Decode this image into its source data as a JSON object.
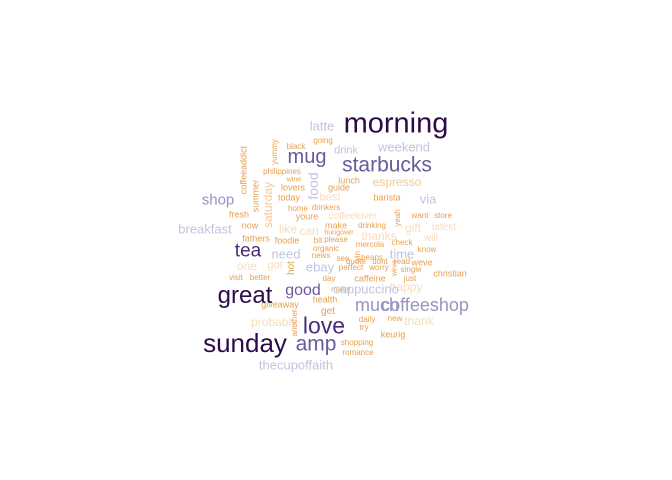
{
  "colors": {
    "darkest": "#2d0a4a",
    "dark": "#4a2a7a",
    "purple": "#6b5a9e",
    "lavender": "#9a92c4",
    "pale_lavender": "#c5c2df",
    "peach": "#f3c89a",
    "orange": "#e8a04e",
    "pale_peach": "#f7dcbc"
  },
  "words": [
    "morning",
    "starbucks",
    "mug",
    "latte",
    "weekend",
    "drink",
    "going",
    "black",
    "espresso",
    "food",
    "coffeeaddict",
    "yummy",
    "philippines",
    "wine",
    "lovers",
    "guide",
    "lunch",
    "shop",
    "via",
    "summer",
    "saturday",
    "today",
    "best",
    "barista",
    "home",
    "drinkers",
    "fresh",
    "youre",
    "coffeelover",
    "want",
    "store",
    "breakfast",
    "now",
    "like",
    "can",
    "make",
    "drinking",
    "yeah",
    "gift",
    "latest",
    "fathers",
    "foodie",
    "hungover",
    "thanks",
    "will",
    "tea",
    "need",
    "bit",
    "please",
    "mercola",
    "check",
    "time",
    "one",
    "got",
    "hot",
    "organic",
    "news",
    "see",
    "win",
    "perfect",
    "worry",
    "quote",
    "dont",
    "read",
    "beans",
    "know",
    "single",
    "weve",
    "christian",
    "visit",
    "better",
    "ebay",
    "happy",
    "day",
    "caffeine",
    "just",
    "great",
    "good",
    "cappuccino",
    "giveaway",
    "health",
    "much",
    "coffeeshop",
    "maker",
    "get",
    "probably",
    "daily",
    "new",
    "thank",
    "try",
    "another",
    "love",
    "sunday",
    "amp",
    "keurig",
    "shopping",
    "romance",
    "thecupoffaith"
  ]
}
